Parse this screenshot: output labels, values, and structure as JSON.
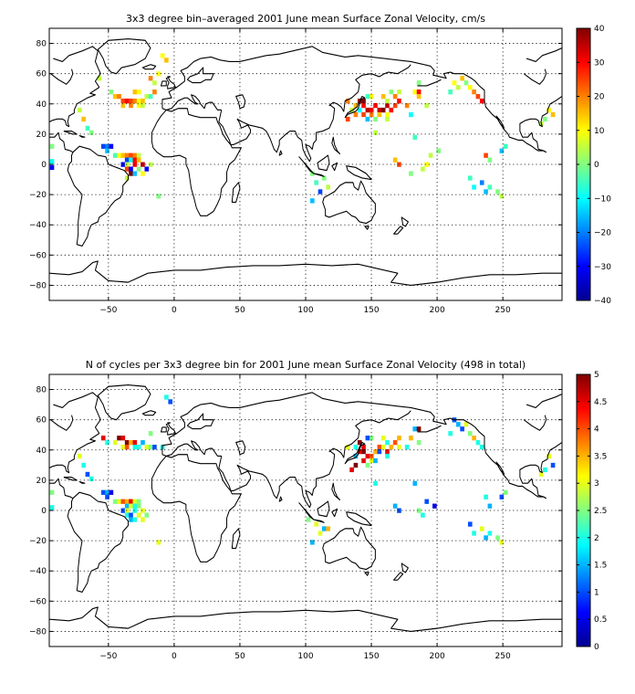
{
  "chart_data": [
    {
      "type": "heatmap",
      "title": "3x3 degree bin–averaged 2001 June mean Surface Zonal Velocity, cm/s",
      "xlabel": "",
      "ylabel": "",
      "xlim": [
        -95,
        295
      ],
      "ylim": [
        -90,
        90
      ],
      "xticks": [
        -50,
        0,
        50,
        100,
        150,
        200,
        250
      ],
      "yticks": [
        -80,
        -60,
        -40,
        -20,
        0,
        20,
        40,
        60,
        80
      ],
      "grid": true,
      "colorbar": {
        "min": -40,
        "max": 40,
        "ticks": [
          40,
          30,
          20,
          10,
          0,
          -10,
          -20,
          -30,
          -40
        ]
      },
      "cell_size_deg": 3,
      "cells": [
        [
          -93,
          12,
          0
        ],
        [
          -93,
          2,
          -10
        ],
        [
          -93,
          -2,
          -30
        ],
        [
          -72,
          36,
          5
        ],
        [
          -69,
          30,
          15
        ],
        [
          -66,
          24,
          -5
        ],
        [
          -63,
          21,
          0
        ],
        [
          -54,
          12,
          -25
        ],
        [
          -51,
          12,
          -20
        ],
        [
          -48,
          12,
          -30
        ],
        [
          -51,
          9,
          -15
        ],
        [
          -45,
          6,
          -5
        ],
        [
          -42,
          6,
          10
        ],
        [
          -39,
          6,
          15
        ],
        [
          -36,
          6,
          20
        ],
        [
          -33,
          6,
          25
        ],
        [
          -30,
          6,
          20
        ],
        [
          -27,
          6,
          5
        ],
        [
          -36,
          3,
          -25
        ],
        [
          -33,
          3,
          -10
        ],
        [
          -30,
          3,
          30
        ],
        [
          -27,
          3,
          15
        ],
        [
          -39,
          0,
          -30
        ],
        [
          -36,
          0,
          5
        ],
        [
          -30,
          0,
          30
        ],
        [
          -24,
          0,
          35
        ],
        [
          -18,
          0,
          5
        ],
        [
          -36,
          -3,
          25
        ],
        [
          -33,
          -3,
          -30
        ],
        [
          -27,
          -3,
          0
        ],
        [
          -21,
          -3,
          -30
        ],
        [
          -33,
          -6,
          40
        ],
        [
          -30,
          -6,
          -15
        ],
        [
          -24,
          -6,
          10
        ],
        [
          -36,
          -9,
          5
        ],
        [
          -12,
          -21,
          0
        ],
        [
          -57,
          57,
          5
        ],
        [
          -48,
          48,
          0
        ],
        [
          -45,
          45,
          15
        ],
        [
          -42,
          45,
          20
        ],
        [
          -39,
          42,
          25
        ],
        [
          -36,
          42,
          30
        ],
        [
          -33,
          42,
          25
        ],
        [
          -30,
          42,
          20
        ],
        [
          -27,
          42,
          10
        ],
        [
          -24,
          42,
          15
        ],
        [
          -21,
          45,
          5
        ],
        [
          -18,
          45,
          -5
        ],
        [
          -39,
          39,
          15
        ],
        [
          -33,
          39,
          20
        ],
        [
          -27,
          39,
          10
        ],
        [
          -24,
          39,
          5
        ],
        [
          -18,
          57,
          20
        ],
        [
          -15,
          54,
          5
        ],
        [
          -12,
          60,
          10
        ],
        [
          -9,
          72,
          10
        ],
        [
          -6,
          69,
          15
        ],
        [
          -30,
          48,
          15
        ],
        [
          -27,
          48,
          10
        ],
        [
          -15,
          48,
          20
        ],
        [
          138,
          39,
          15
        ],
        [
          141,
          42,
          35
        ],
        [
          144,
          42,
          40
        ],
        [
          144,
          39,
          30
        ],
        [
          147,
          36,
          35
        ],
        [
          150,
          36,
          30
        ],
        [
          153,
          39,
          30
        ],
        [
          156,
          36,
          35
        ],
        [
          159,
          36,
          40
        ],
        [
          162,
          39,
          35
        ],
        [
          165,
          36,
          30
        ],
        [
          168,
          39,
          25
        ],
        [
          171,
          42,
          30
        ],
        [
          168,
          45,
          20
        ],
        [
          162,
          42,
          5
        ],
        [
          159,
          45,
          15
        ],
        [
          150,
          45,
          10
        ],
        [
          147,
          45,
          -5
        ],
        [
          141,
          36,
          -10
        ],
        [
          138,
          33,
          20
        ],
        [
          144,
          33,
          25
        ],
        [
          150,
          33,
          20
        ],
        [
          156,
          33,
          15
        ],
        [
          162,
          33,
          10
        ],
        [
          147,
          30,
          -15
        ],
        [
          153,
          30,
          0
        ],
        [
          162,
          30,
          5
        ],
        [
          177,
          39,
          20
        ],
        [
          183,
          48,
          10
        ],
        [
          186,
          48,
          30
        ],
        [
          180,
          33,
          -10
        ],
        [
          171,
          48,
          5
        ],
        [
          165,
          48,
          0
        ],
        [
          132,
          42,
          20
        ],
        [
          135,
          36,
          5
        ],
        [
          132,
          30,
          25
        ],
        [
          186,
          45,
          15
        ],
        [
          192,
          39,
          5
        ],
        [
          186,
          54,
          0
        ],
        [
          153,
          21,
          5
        ],
        [
          183,
          18,
          -5
        ],
        [
          168,
          3,
          15
        ],
        [
          171,
          0,
          25
        ],
        [
          192,
          0,
          10
        ],
        [
          195,
          6,
          5
        ],
        [
          201,
          9,
          0
        ],
        [
          189,
          -3,
          5
        ],
        [
          180,
          -6,
          0
        ],
        [
          105,
          -6,
          0
        ],
        [
          108,
          -12,
          -5
        ],
        [
          105,
          -24,
          -15
        ],
        [
          111,
          -18,
          -25
        ],
        [
          114,
          -9,
          0
        ],
        [
          117,
          -15,
          5
        ],
        [
          213,
          54,
          10
        ],
        [
          216,
          51,
          5
        ],
        [
          219,
          57,
          15
        ],
        [
          222,
          54,
          0
        ],
        [
          225,
          51,
          10
        ],
        [
          210,
          48,
          -5
        ],
        [
          228,
          48,
          20
        ],
        [
          231,
          45,
          25
        ],
        [
          234,
          42,
          30
        ],
        [
          237,
          6,
          25
        ],
        [
          240,
          3,
          0
        ],
        [
          249,
          9,
          -15
        ],
        [
          252,
          12,
          -5
        ],
        [
          225,
          -9,
          -5
        ],
        [
          228,
          -15,
          -10
        ],
        [
          234,
          -12,
          -20
        ],
        [
          237,
          -18,
          -15
        ],
        [
          240,
          -15,
          -5
        ],
        [
          246,
          -18,
          0
        ],
        [
          249,
          -21,
          5
        ],
        [
          285,
          36,
          10
        ],
        [
          288,
          33,
          15
        ],
        [
          282,
          30,
          0
        ],
        [
          279,
          27,
          5
        ]
      ]
    },
    {
      "type": "heatmap",
      "title": "N of cycles per 3x3 degree bin for 2001 June mean Surface Zonal Velocity (498 in total)",
      "xlabel": "",
      "ylabel": "",
      "xlim": [
        -95,
        295
      ],
      "ylim": [
        -90,
        90
      ],
      "xticks": [
        -50,
        0,
        50,
        100,
        150,
        200,
        250
      ],
      "yticks": [
        -80,
        -60,
        -40,
        -20,
        0,
        20,
        40,
        60,
        80
      ],
      "grid": true,
      "colorbar": {
        "min": 0,
        "max": 5,
        "ticks": [
          5,
          4.5,
          4,
          3.5,
          3,
          2.5,
          2,
          1.5,
          1,
          0.5,
          0
        ]
      },
      "cell_size_deg": 3,
      "cells": [
        [
          -93,
          12,
          2.5
        ],
        [
          -93,
          2,
          2
        ],
        [
          -72,
          36,
          3
        ],
        [
          -69,
          30,
          2
        ],
        [
          -66,
          24,
          1
        ],
        [
          -63,
          21,
          2
        ],
        [
          -54,
          12,
          1
        ],
        [
          -51,
          12,
          1.5
        ],
        [
          -48,
          12,
          0.5
        ],
        [
          -51,
          9,
          1
        ],
        [
          -45,
          6,
          2.5
        ],
        [
          -42,
          6,
          3
        ],
        [
          -39,
          6,
          4
        ],
        [
          -36,
          6,
          3.5
        ],
        [
          -33,
          6,
          4.5
        ],
        [
          -30,
          6,
          3
        ],
        [
          -27,
          6,
          2.5
        ],
        [
          -36,
          3,
          1.5
        ],
        [
          -33,
          3,
          3
        ],
        [
          -30,
          3,
          2
        ],
        [
          -27,
          3,
          2.5
        ],
        [
          -39,
          0,
          1
        ],
        [
          -36,
          0,
          3
        ],
        [
          -30,
          0,
          2
        ],
        [
          -24,
          0,
          3
        ],
        [
          -36,
          -3,
          2
        ],
        [
          -33,
          -3,
          1
        ],
        [
          -27,
          -3,
          3
        ],
        [
          -21,
          -3,
          2.5
        ],
        [
          -33,
          -6,
          1.5
        ],
        [
          -30,
          -6,
          2
        ],
        [
          -24,
          -6,
          3
        ],
        [
          -12,
          -21,
          3
        ],
        [
          -54,
          48,
          4.5
        ],
        [
          -51,
          45,
          2
        ],
        [
          -45,
          45,
          3
        ],
        [
          -42,
          48,
          5
        ],
        [
          -39,
          48,
          4.5
        ],
        [
          -36,
          45,
          5
        ],
        [
          -33,
          45,
          3.5
        ],
        [
          -30,
          45,
          4.5
        ],
        [
          -27,
          42,
          2
        ],
        [
          -24,
          45,
          1.5
        ],
        [
          -21,
          42,
          3
        ],
        [
          -18,
          42,
          2.5
        ],
        [
          -39,
          42,
          3
        ],
        [
          -36,
          42,
          4
        ],
        [
          -30,
          42,
          2
        ],
        [
          -18,
          51,
          2.5
        ],
        [
          -15,
          42,
          1
        ],
        [
          -9,
          42,
          2
        ],
        [
          -6,
          75,
          2
        ],
        [
          -3,
          72,
          1
        ],
        [
          132,
          42,
          3
        ],
        [
          138,
          42,
          2
        ],
        [
          141,
          45,
          5
        ],
        [
          144,
          42,
          4.5
        ],
        [
          144,
          39,
          5
        ],
        [
          147,
          36,
          4.5
        ],
        [
          150,
          36,
          4
        ],
        [
          153,
          39,
          3.5
        ],
        [
          156,
          42,
          4
        ],
        [
          159,
          42,
          3
        ],
        [
          162,
          39,
          4.5
        ],
        [
          165,
          42,
          3.5
        ],
        [
          168,
          45,
          4
        ],
        [
          171,
          48,
          3.5
        ],
        [
          162,
          45,
          2
        ],
        [
          159,
          48,
          3
        ],
        [
          150,
          48,
          2.5
        ],
        [
          147,
          48,
          1
        ],
        [
          141,
          39,
          4.5
        ],
        [
          138,
          36,
          1.5
        ],
        [
          144,
          33,
          4.5
        ],
        [
          150,
          33,
          3
        ],
        [
          156,
          39,
          1
        ],
        [
          147,
          30,
          2.5
        ],
        [
          153,
          33,
          1.5
        ],
        [
          162,
          36,
          2
        ],
        [
          177,
          42,
          2
        ],
        [
          183,
          54,
          1.5
        ],
        [
          186,
          54,
          5
        ],
        [
          180,
          48,
          3.5
        ],
        [
          171,
          42,
          3
        ],
        [
          138,
          30,
          5
        ],
        [
          135,
          27,
          4.5
        ],
        [
          186,
          45,
          2.5
        ],
        [
          153,
          18,
          2
        ],
        [
          183,
          18,
          1.5
        ],
        [
          168,
          3,
          1.5
        ],
        [
          171,
          0,
          1
        ],
        [
          186,
          0,
          2.5
        ],
        [
          192,
          6,
          1
        ],
        [
          198,
          3,
          0.5
        ],
        [
          189,
          -3,
          2
        ],
        [
          102,
          -6,
          2.5
        ],
        [
          108,
          -9,
          3
        ],
        [
          105,
          -21,
          1.5
        ],
        [
          111,
          -15,
          3
        ],
        [
          114,
          -12,
          1.5
        ],
        [
          117,
          -12,
          3.5
        ],
        [
          213,
          60,
          1
        ],
        [
          216,
          57,
          1.5
        ],
        [
          219,
          54,
          1
        ],
        [
          222,
          57,
          3
        ],
        [
          225,
          51,
          2.5
        ],
        [
          210,
          51,
          2
        ],
        [
          228,
          48,
          3.5
        ],
        [
          231,
          45,
          2
        ],
        [
          234,
          42,
          2
        ],
        [
          237,
          9,
          2
        ],
        [
          240,
          3,
          1.5
        ],
        [
          249,
          9,
          1
        ],
        [
          252,
          12,
          2.5
        ],
        [
          225,
          -9,
          1
        ],
        [
          228,
          -15,
          2
        ],
        [
          234,
          -12,
          3
        ],
        [
          237,
          -18,
          1.5
        ],
        [
          240,
          -15,
          2
        ],
        [
          246,
          -18,
          2.5
        ],
        [
          249,
          -21,
          3
        ],
        [
          285,
          36,
          3
        ],
        [
          288,
          30,
          1
        ],
        [
          282,
          27,
          2
        ],
        [
          279,
          24,
          3
        ]
      ]
    }
  ]
}
